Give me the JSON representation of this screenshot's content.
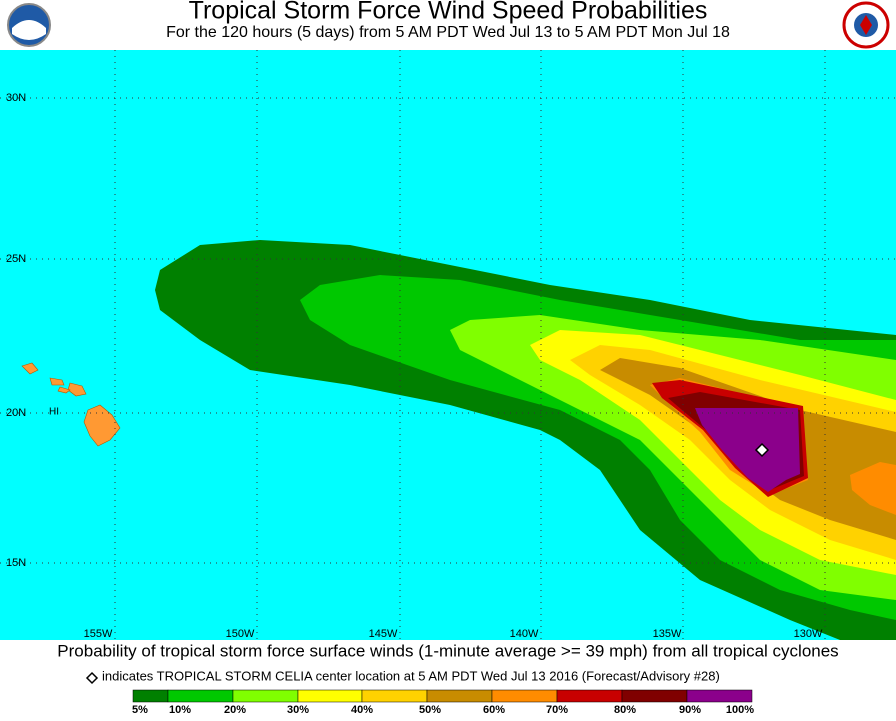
{
  "header": {
    "title": "Tropical Storm Force Wind Speed Probabilities",
    "subtitle": "For the 120 hours (5 days) from 5 AM PDT Wed Jul 13 to 5 AM PDT Mon Jul 18"
  },
  "map": {
    "lat_labels": [
      "30N",
      "25N",
      "20N",
      "15N"
    ],
    "lon_labels": [
      "155W",
      "150W",
      "145W",
      "140W",
      "135W",
      "130W"
    ],
    "place_label": "HI"
  },
  "footer": {
    "caption": "Probability of tropical storm force surface winds (1-minute average >= 39 mph) from all tropical cyclones",
    "storm_note": "indicates TROPICAL STORM CELIA center location at 5 AM PDT Wed Jul 13 2016 (Forecast/Advisory #28)"
  },
  "legend": {
    "labels": [
      "5%",
      "10%",
      "20%",
      "30%",
      "40%",
      "50%",
      "60%",
      "70%",
      "80%",
      "90%",
      "100%"
    ],
    "colors": [
      "#008000",
      "#00c800",
      "#80ff00",
      "#ffff00",
      "#ffd200",
      "#c88c00",
      "#ff8c00",
      "#c80000",
      "#800000",
      "#8b008b"
    ]
  }
}
